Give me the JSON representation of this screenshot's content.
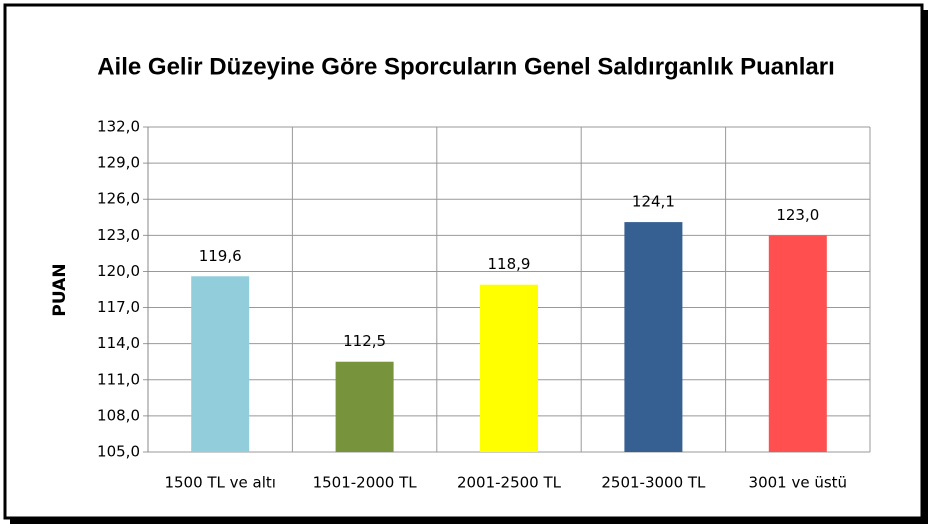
{
  "chart_data": {
    "type": "bar",
    "title": "Aile Gelir Düzeyine Göre Sporcuların Genel Saldırganlık Puanları",
    "y_label": "PUAN",
    "categories": [
      "1500 TL ve altı",
      "1501-2000 TL",
      "2001-2500 TL",
      "2501-3000 TL",
      "3001 ve üstü"
    ],
    "values": [
      119.6,
      112.5,
      118.9,
      124.1,
      123.0
    ],
    "value_labels": [
      "119,6",
      "112,5",
      "118,9",
      "124,1",
      "123,0"
    ],
    "colors": [
      "#92cddc",
      "#77933c",
      "#ffff00",
      "#376092",
      "#ff4f4f"
    ],
    "ylim": [
      105,
      132
    ],
    "yticks": [
      {
        "value": 105,
        "label": "105,0"
      },
      {
        "value": 108,
        "label": "108,0"
      },
      {
        "value": 111,
        "label": "111,0"
      },
      {
        "value": 114,
        "label": "114,0"
      },
      {
        "value": 117,
        "label": "117,0"
      },
      {
        "value": 120,
        "label": "120,0"
      },
      {
        "value": 123,
        "label": "123,0"
      },
      {
        "value": 126,
        "label": "126,0"
      },
      {
        "value": 129,
        "label": "129,0"
      },
      {
        "value": 132,
        "label": "132,0"
      }
    ],
    "grid": true
  }
}
